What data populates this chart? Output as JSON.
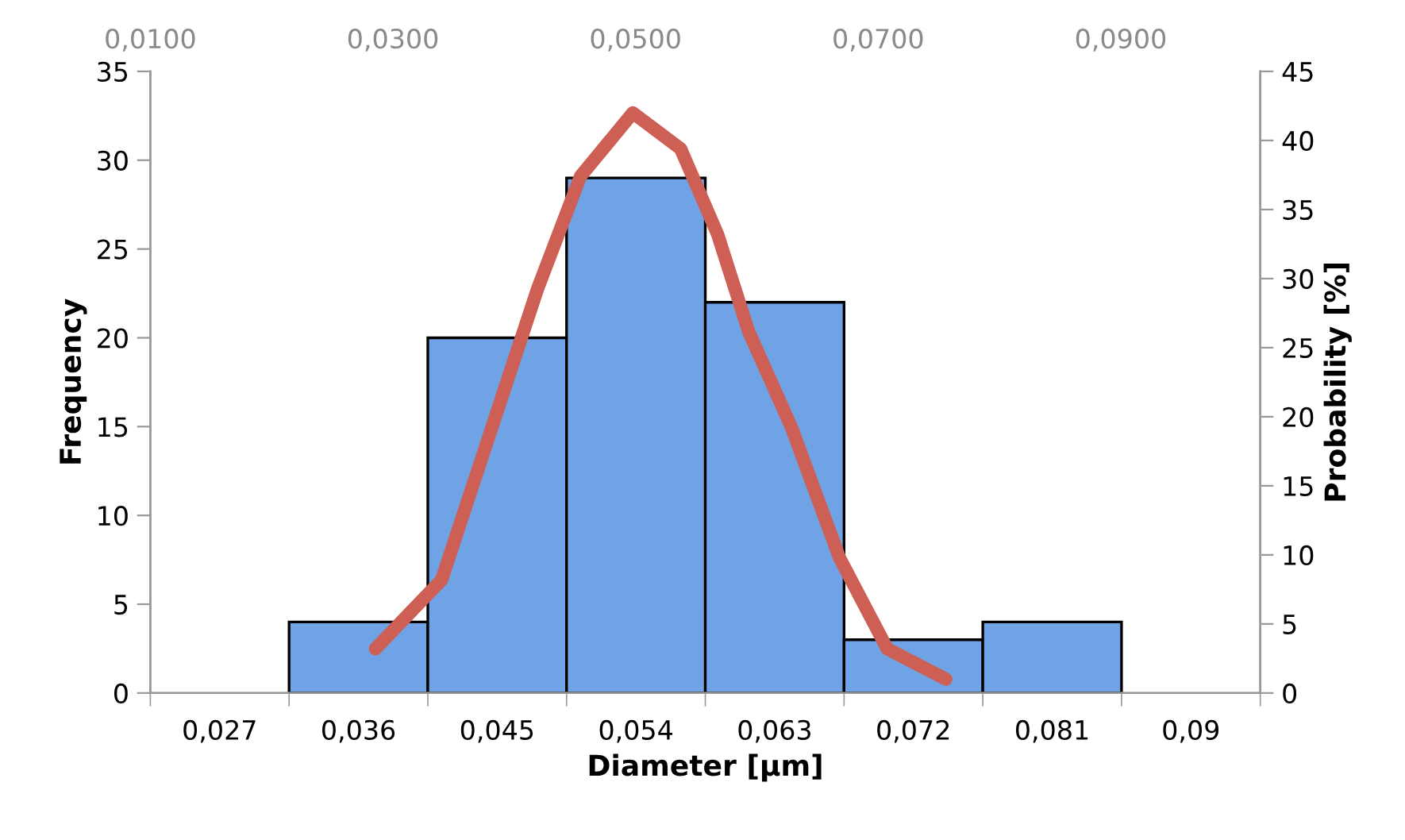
{
  "chart_data": {
    "type": "bar",
    "xlabel": "Diameter [µm]",
    "ylabel": "Frequency",
    "y2label": "Probability [%]",
    "x": [
      0.027,
      0.036,
      0.045,
      0.054,
      0.063,
      0.072,
      0.081,
      0.09
    ],
    "xlim": [
      0.0225,
      0.0945
    ],
    "xticks": [
      {
        "value": 0.027,
        "label": "0,027"
      },
      {
        "value": 0.036,
        "label": "0,036"
      },
      {
        "value": 0.045,
        "label": "0,045"
      },
      {
        "value": 0.054,
        "label": "0,054"
      },
      {
        "value": 0.063,
        "label": "0,063"
      },
      {
        "value": 0.072,
        "label": "0,072"
      },
      {
        "value": 0.081,
        "label": "0,081"
      },
      {
        "value": 0.09,
        "label": "0,09"
      }
    ],
    "series": [
      {
        "color": "#6fa3e6",
        "values": [
          0,
          4,
          20,
          29,
          22,
          3,
          4,
          0
        ]
      },
      {
        "type": "line",
        "axis": "y2",
        "color": "#cd5f55",
        "x": [
          0.0371,
          0.0414,
          0.0445,
          0.0476,
          0.0504,
          0.0538,
          0.0569,
          0.0593,
          0.0613,
          0.0641,
          0.0672,
          0.0703,
          0.0741
        ],
        "values": [
          3.2,
          8.2,
          18.7,
          29.2,
          37.4,
          42.0,
          39.4,
          33.2,
          26.2,
          19.2,
          9.8,
          3.2,
          1.0
        ]
      }
    ],
    "ylim": [
      0,
      35
    ],
    "yticks": [
      0,
      5,
      10,
      15,
      20,
      25,
      30,
      35
    ],
    "y2lim": [
      0,
      45
    ],
    "y2ticks": [
      0,
      5,
      10,
      15,
      20,
      25,
      30,
      35,
      40,
      45
    ],
    "x2lim": [
      0.01,
      0.1015
    ],
    "x2ticks": [
      {
        "value": 0.01,
        "label": "0,0100"
      },
      {
        "value": 0.03,
        "label": "0,0300"
      },
      {
        "value": 0.05,
        "label": "0,0500"
      },
      {
        "value": 0.07,
        "label": "0,0700"
      },
      {
        "value": 0.09,
        "label": "0,0900"
      }
    ],
    "grid": false,
    "legend": false
  }
}
